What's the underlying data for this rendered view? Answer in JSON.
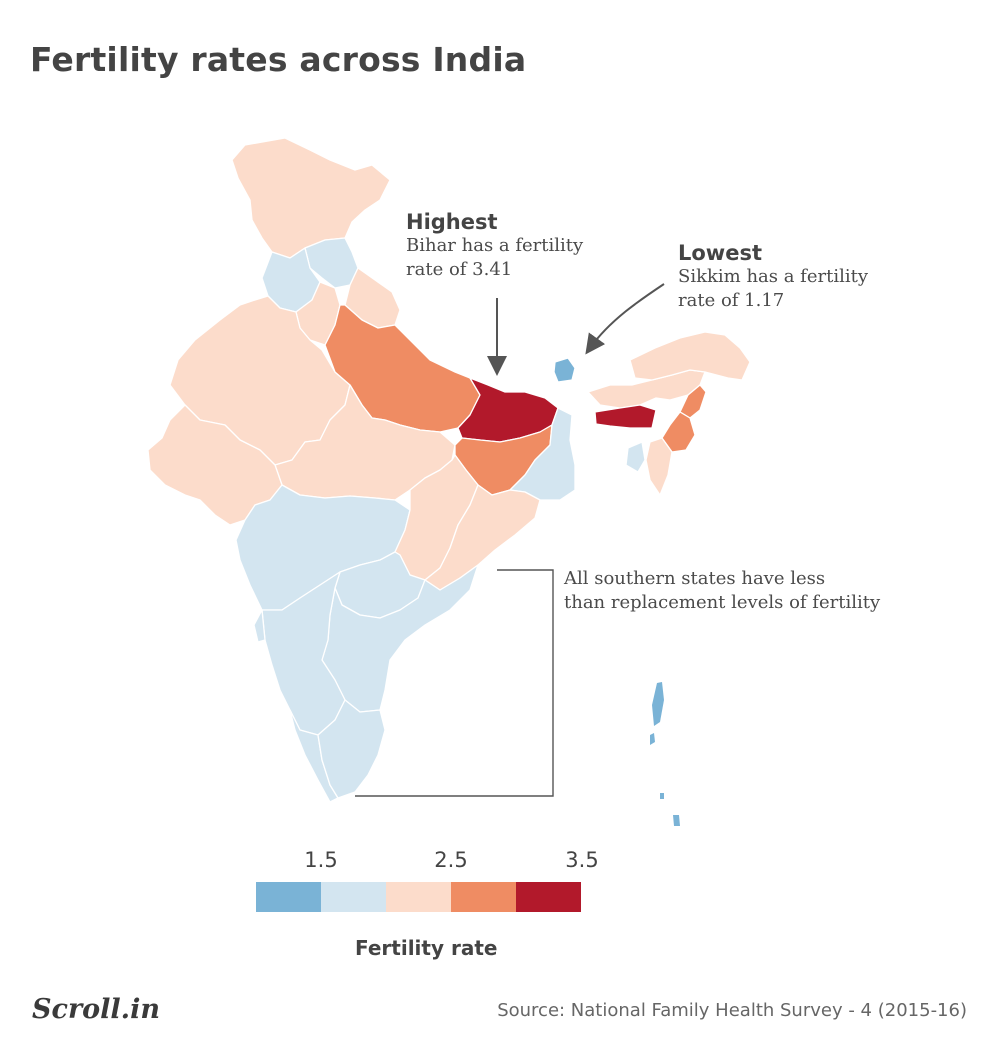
{
  "title": "Fertility rates across India",
  "annotations": {
    "highest": {
      "heading": "Highest",
      "line1": "Bihar has a fertility",
      "line2": "rate of 3.41"
    },
    "lowest": {
      "heading": "Lowest",
      "line1": "Sikkim has a fertility",
      "line2": "rate of 1.17"
    },
    "south": {
      "line1": "All southern states have less",
      "line2": "than replacement levels of fertility"
    }
  },
  "legend": {
    "title": "Fertility rate",
    "tick_labels": [
      "1.5",
      "2.5",
      "3.5"
    ],
    "colors": [
      "#7ab3d6",
      "#d3e5f0",
      "#fcdccb",
      "#ef8c63",
      "#b2192b"
    ]
  },
  "colors": {
    "very_low": "#7ab3d6",
    "low": "#d3e5f0",
    "mid": "#fcdccb",
    "high": "#ef8c63",
    "very_high": "#b2192b"
  },
  "footer": {
    "logo": "Scroll.in",
    "source": "Source: National Family Health Survey - 4 (2015-16)"
  }
}
